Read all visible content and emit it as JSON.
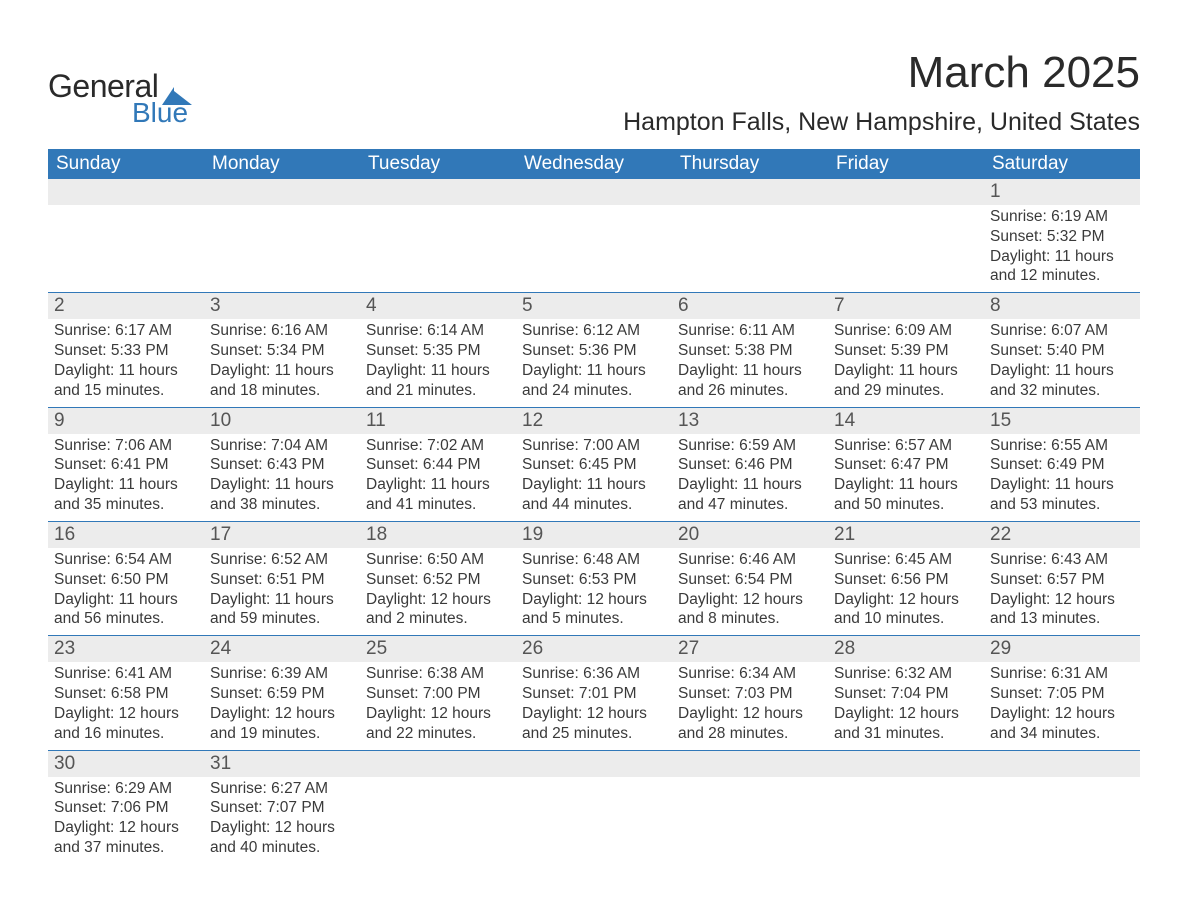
{
  "logo": {
    "line1": "General",
    "line2": "Blue",
    "accent_color": "#3178b8",
    "text_color": "#2a2a2a"
  },
  "title": "March 2025",
  "location": "Hampton Falls, New Hampshire, United States",
  "colors": {
    "header_bg": "#3178b8",
    "header_text": "#ffffff",
    "daynum_bg": "#ececec",
    "body_text": "#3a3a3a",
    "row_border": "#3178b8"
  },
  "weekdays": [
    "Sunday",
    "Monday",
    "Tuesday",
    "Wednesday",
    "Thursday",
    "Friday",
    "Saturday"
  ],
  "weeks": [
    [
      null,
      null,
      null,
      null,
      null,
      null,
      {
        "day": "1",
        "sunrise": "6:19 AM",
        "sunset": "5:32 PM",
        "daylight": "11 hours and 12 minutes."
      }
    ],
    [
      {
        "day": "2",
        "sunrise": "6:17 AM",
        "sunset": "5:33 PM",
        "daylight": "11 hours and 15 minutes."
      },
      {
        "day": "3",
        "sunrise": "6:16 AM",
        "sunset": "5:34 PM",
        "daylight": "11 hours and 18 minutes."
      },
      {
        "day": "4",
        "sunrise": "6:14 AM",
        "sunset": "5:35 PM",
        "daylight": "11 hours and 21 minutes."
      },
      {
        "day": "5",
        "sunrise": "6:12 AM",
        "sunset": "5:36 PM",
        "daylight": "11 hours and 24 minutes."
      },
      {
        "day": "6",
        "sunrise": "6:11 AM",
        "sunset": "5:38 PM",
        "daylight": "11 hours and 26 minutes."
      },
      {
        "day": "7",
        "sunrise": "6:09 AM",
        "sunset": "5:39 PM",
        "daylight": "11 hours and 29 minutes."
      },
      {
        "day": "8",
        "sunrise": "6:07 AM",
        "sunset": "5:40 PM",
        "daylight": "11 hours and 32 minutes."
      }
    ],
    [
      {
        "day": "9",
        "sunrise": "7:06 AM",
        "sunset": "6:41 PM",
        "daylight": "11 hours and 35 minutes."
      },
      {
        "day": "10",
        "sunrise": "7:04 AM",
        "sunset": "6:43 PM",
        "daylight": "11 hours and 38 minutes."
      },
      {
        "day": "11",
        "sunrise": "7:02 AM",
        "sunset": "6:44 PM",
        "daylight": "11 hours and 41 minutes."
      },
      {
        "day": "12",
        "sunrise": "7:00 AM",
        "sunset": "6:45 PM",
        "daylight": "11 hours and 44 minutes."
      },
      {
        "day": "13",
        "sunrise": "6:59 AM",
        "sunset": "6:46 PM",
        "daylight": "11 hours and 47 minutes."
      },
      {
        "day": "14",
        "sunrise": "6:57 AM",
        "sunset": "6:47 PM",
        "daylight": "11 hours and 50 minutes."
      },
      {
        "day": "15",
        "sunrise": "6:55 AM",
        "sunset": "6:49 PM",
        "daylight": "11 hours and 53 minutes."
      }
    ],
    [
      {
        "day": "16",
        "sunrise": "6:54 AM",
        "sunset": "6:50 PM",
        "daylight": "11 hours and 56 minutes."
      },
      {
        "day": "17",
        "sunrise": "6:52 AM",
        "sunset": "6:51 PM",
        "daylight": "11 hours and 59 minutes."
      },
      {
        "day": "18",
        "sunrise": "6:50 AM",
        "sunset": "6:52 PM",
        "daylight": "12 hours and 2 minutes."
      },
      {
        "day": "19",
        "sunrise": "6:48 AM",
        "sunset": "6:53 PM",
        "daylight": "12 hours and 5 minutes."
      },
      {
        "day": "20",
        "sunrise": "6:46 AM",
        "sunset": "6:54 PM",
        "daylight": "12 hours and 8 minutes."
      },
      {
        "day": "21",
        "sunrise": "6:45 AM",
        "sunset": "6:56 PM",
        "daylight": "12 hours and 10 minutes."
      },
      {
        "day": "22",
        "sunrise": "6:43 AM",
        "sunset": "6:57 PM",
        "daylight": "12 hours and 13 minutes."
      }
    ],
    [
      {
        "day": "23",
        "sunrise": "6:41 AM",
        "sunset": "6:58 PM",
        "daylight": "12 hours and 16 minutes."
      },
      {
        "day": "24",
        "sunrise": "6:39 AM",
        "sunset": "6:59 PM",
        "daylight": "12 hours and 19 minutes."
      },
      {
        "day": "25",
        "sunrise": "6:38 AM",
        "sunset": "7:00 PM",
        "daylight": "12 hours and 22 minutes."
      },
      {
        "day": "26",
        "sunrise": "6:36 AM",
        "sunset": "7:01 PM",
        "daylight": "12 hours and 25 minutes."
      },
      {
        "day": "27",
        "sunrise": "6:34 AM",
        "sunset": "7:03 PM",
        "daylight": "12 hours and 28 minutes."
      },
      {
        "day": "28",
        "sunrise": "6:32 AM",
        "sunset": "7:04 PM",
        "daylight": "12 hours and 31 minutes."
      },
      {
        "day": "29",
        "sunrise": "6:31 AM",
        "sunset": "7:05 PM",
        "daylight": "12 hours and 34 minutes."
      }
    ],
    [
      {
        "day": "30",
        "sunrise": "6:29 AM",
        "sunset": "7:06 PM",
        "daylight": "12 hours and 37 minutes."
      },
      {
        "day": "31",
        "sunrise": "6:27 AM",
        "sunset": "7:07 PM",
        "daylight": "12 hours and 40 minutes."
      },
      null,
      null,
      null,
      null,
      null
    ]
  ],
  "labels": {
    "sunrise": "Sunrise: ",
    "sunset": "Sunset: ",
    "daylight": "Daylight: "
  }
}
